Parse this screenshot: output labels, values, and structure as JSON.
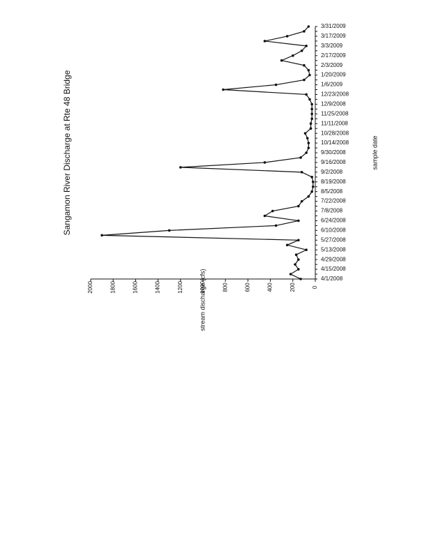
{
  "chart_data": {
    "type": "line",
    "title": "Sangamon River Discharge at Rte 48 Bridge",
    "x_label": "sample date",
    "y_label": "stream discharge (cfs)",
    "categories": [
      "4/1/2008",
      null,
      "4/15/2008",
      null,
      "4/29/2008",
      null,
      "5/13/2008",
      null,
      "5/27/2008",
      null,
      "6/10/2008",
      null,
      "6/24/2008",
      null,
      "7/8/2008",
      null,
      "7/22/2008",
      null,
      "8/5/2008",
      null,
      "8/19/2008",
      null,
      "9/2/2008",
      null,
      "9/16/2008",
      null,
      "9/30/2008",
      null,
      "10/14/2008",
      null,
      "10/28/2008",
      null,
      "11/11/2008",
      null,
      "11/25/2008",
      null,
      "12/9/2008",
      null,
      "12/23/2008",
      null,
      "1/6/2009",
      null,
      "1/20/2009",
      null,
      "2/3/2009",
      null,
      "2/17/2009",
      null,
      "3/3/2009",
      null,
      "3/17/2009",
      null,
      "3/31/2009"
    ],
    "series": [
      {
        "name": "discharge",
        "color": "#111111",
        "values": [
          130,
          220,
          150,
          180,
          150,
          170,
          80,
          250,
          150,
          1900,
          1300,
          350,
          150,
          450,
          380,
          150,
          120,
          60,
          30,
          20,
          20,
          30,
          120,
          1200,
          450,
          130,
          80,
          60,
          60,
          70,
          90,
          40,
          40,
          30,
          30,
          30,
          30,
          50,
          80,
          820,
          350,
          100,
          50,
          60,
          100,
          300,
          200,
          120,
          80,
          450,
          250,
          100,
          60
        ]
      }
    ],
    "ylim": [
      0,
      2000
    ],
    "yticks": [
      0,
      200,
      400,
      600,
      800,
      1000,
      1200,
      1400,
      1600,
      1800,
      2000
    ],
    "grid": false
  }
}
